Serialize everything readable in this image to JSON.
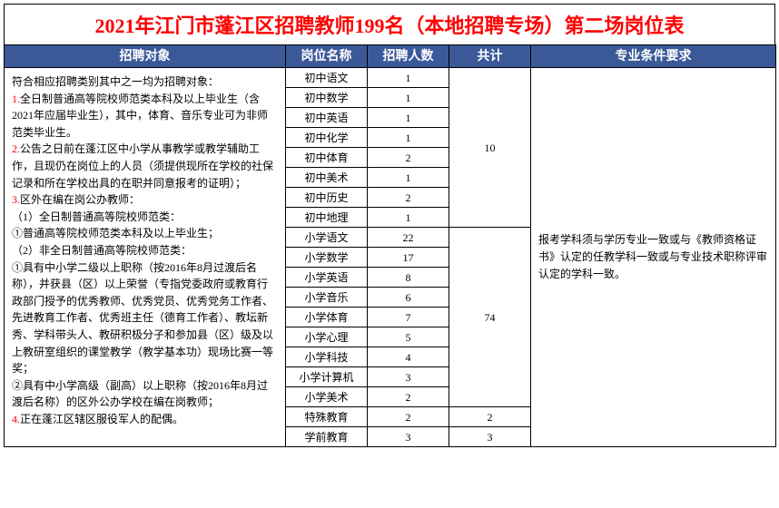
{
  "title": {
    "text": "2021年江门市蓬江区招聘教师199名（本地招聘专场）第二场岗位表",
    "color": "#ff0000"
  },
  "headers": {
    "target": "招聘对象",
    "position": "岗位名称",
    "count": "招聘人数",
    "total": "共计",
    "requirement": "专业条件要求"
  },
  "header_bg": "#3b5998",
  "header_fg": "#ffffff",
  "red_color": "#ff0000",
  "target_text": {
    "intro": "符合相应招聘类别其中之一均为招聘对象：",
    "n1": "1.",
    "p1": "全日制普通高等院校师范类本科及以上毕业生（含2021年应届毕业生），其中，体育、音乐专业可为非师范类毕业生。",
    "n2": "2.",
    "p2": "公告之日前在蓬江区中小学从事教学或教学辅助工作，且现仍在岗位上的人员（须提供现所在学校的社保记录和所在学校出具的在职并同意报考的证明）；",
    "n3": "3.",
    "p3": "区外在编在岗公办教师：",
    "p3a": "（1）全日制普通高等院校师范类：",
    "p3a1": "①普通高等院校师范类本科及以上毕业生；",
    "p3b": "（2）非全日制普通高等院校师范类：",
    "p3b1": "①具有中小学二级以上职称（按2016年8月过渡后名称），并获县（区）以上荣誉（专指党委政府或教育行政部门授予的优秀教师、优秀党员、优秀党务工作者、先进教育工作者、优秀班主任（德育工作者）、教坛新秀、学科带头人、教研积极分子和参加县（区）级及以上教研室组织的课堂教学（教学基本功）现场比赛一等奖；",
    "p3b2": "②具有中小学高级（副高）以上职称（按2016年8月过渡后名称）的区外公办学校在编在岗教师；",
    "n4": "4.",
    "p4": "正在蓬江区辖区服役军人的配偶。"
  },
  "requirement_text": "报考学科须与学历专业一致或与《教师资格证书》认定的任教学科一致或与专业技术职称评审认定的学科一致。",
  "groups": [
    {
      "total": "10",
      "rows": [
        {
          "pos": "初中语文",
          "count": "1"
        },
        {
          "pos": "初中数学",
          "count": "1"
        },
        {
          "pos": "初中英语",
          "count": "1"
        },
        {
          "pos": "初中化学",
          "count": "1"
        },
        {
          "pos": "初中体育",
          "count": "2"
        },
        {
          "pos": "初中美术",
          "count": "1"
        },
        {
          "pos": "初中历史",
          "count": "2"
        },
        {
          "pos": "初中地理",
          "count": "1"
        }
      ]
    },
    {
      "total": "74",
      "rows": [
        {
          "pos": "小学语文",
          "count": "22"
        },
        {
          "pos": "小学数学",
          "count": "17"
        },
        {
          "pos": "小学英语",
          "count": "8"
        },
        {
          "pos": "小学音乐",
          "count": "6"
        },
        {
          "pos": "小学体育",
          "count": "7"
        },
        {
          "pos": "小学心理",
          "count": "5"
        },
        {
          "pos": "小学科技",
          "count": "4"
        },
        {
          "pos": "小学计算机",
          "count": "3"
        },
        {
          "pos": "小学美术",
          "count": "2"
        }
      ]
    },
    {
      "total": "2",
      "rows": [
        {
          "pos": "特殊教育",
          "count": "2"
        }
      ]
    },
    {
      "total": "3",
      "rows": [
        {
          "pos": "学前教育",
          "count": "3"
        }
      ]
    }
  ]
}
